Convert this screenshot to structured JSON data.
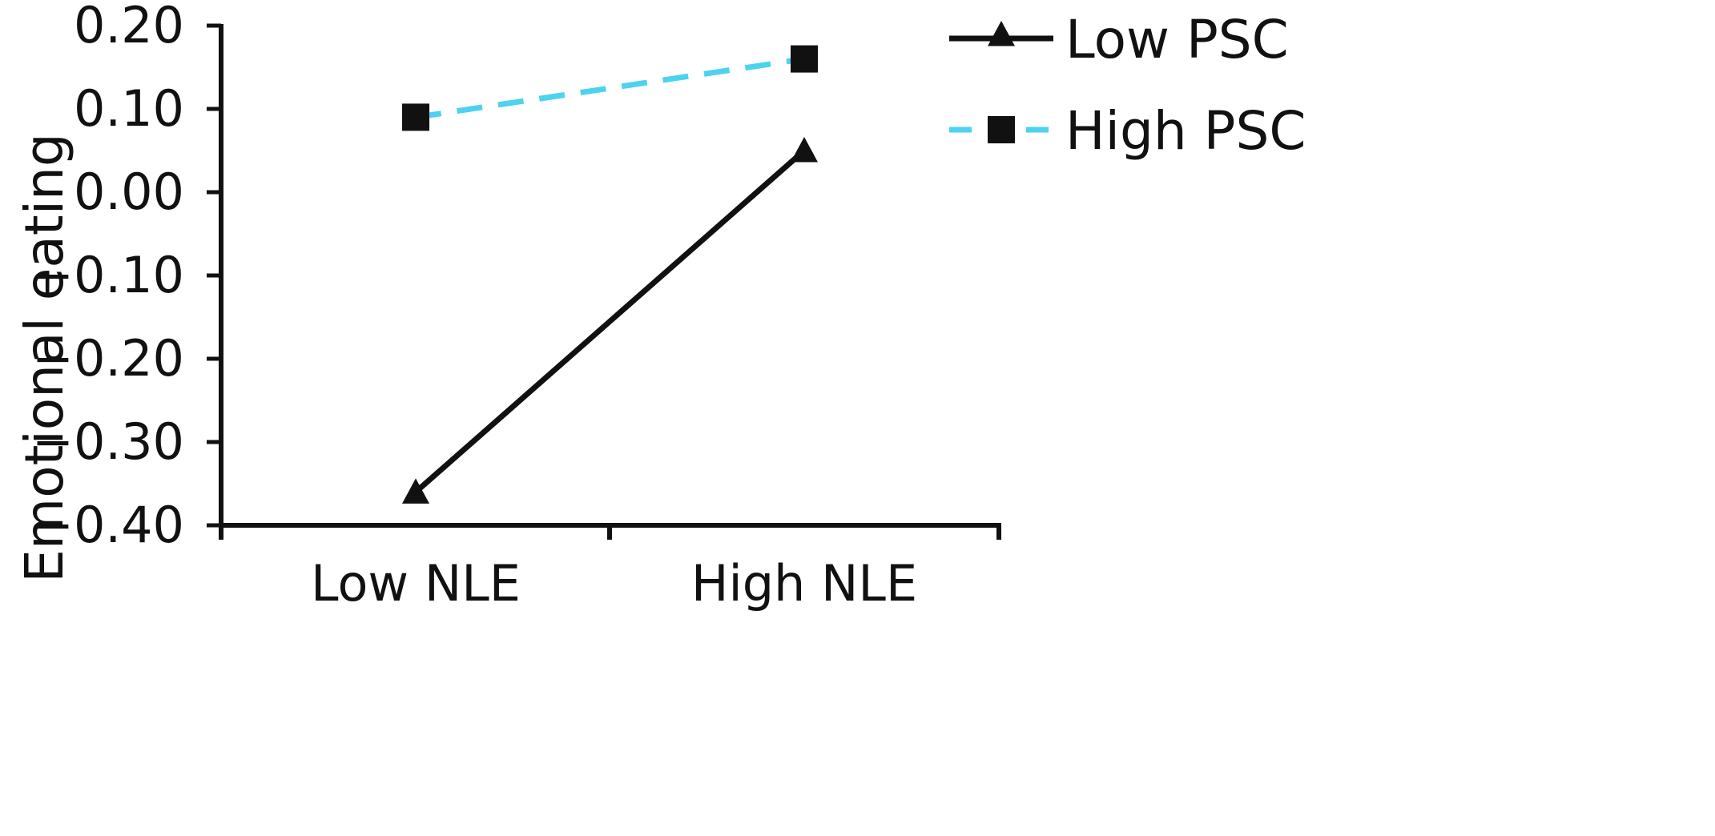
{
  "chart_data": {
    "type": "line",
    "title": "",
    "xlabel": "",
    "ylabel": "Emotional eating",
    "categories": [
      "Low NLE",
      "High NLE"
    ],
    "ylim": [
      -0.4,
      0.2
    ],
    "yticks": [
      "0.20",
      "0.10",
      "0.00",
      "−0.10",
      "−0.20",
      "−0.30",
      "−0.40"
    ],
    "ytick_values": [
      0.2,
      0.1,
      0.0,
      -0.1,
      -0.2,
      -0.3,
      -0.4
    ],
    "grid": false,
    "legend_position": "top-right",
    "series": [
      {
        "name": "Low PSC",
        "values": [
          -0.36,
          0.05
        ],
        "color": "#111111",
        "line_style": "solid",
        "marker": "triangle"
      },
      {
        "name": "High PSC",
        "values": [
          0.09,
          0.16
        ],
        "color": "#4dd2ef",
        "line_style": "dashed",
        "marker": "square"
      }
    ]
  }
}
